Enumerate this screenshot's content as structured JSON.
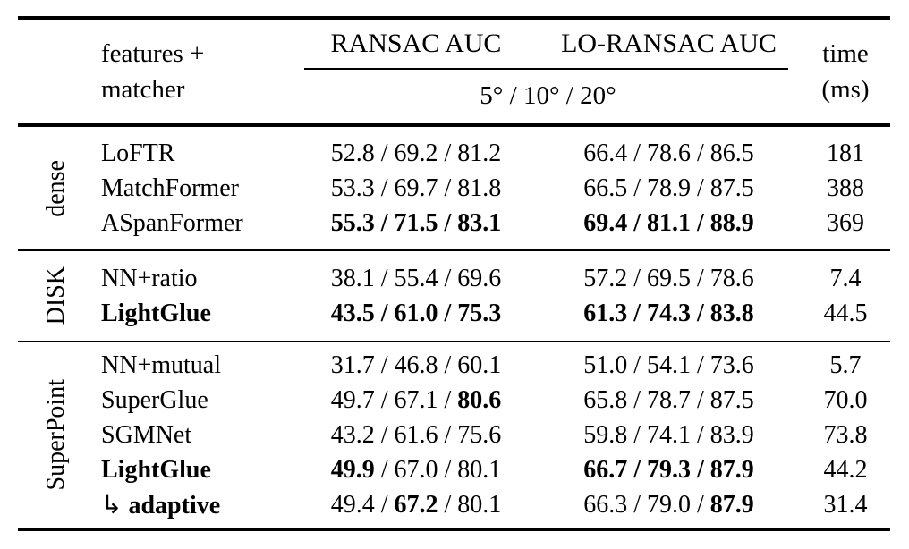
{
  "page": {
    "background": "#ffffff",
    "text_color": "#000000"
  },
  "table": {
    "separator": " / ",
    "header": {
      "features_line1": "features +",
      "features_line2": "matcher",
      "ransac": "RANSAC AUC",
      "loransac": "LO-RANSAC AUC",
      "thresholds": "5° / 10° / 20°",
      "time_line1": "time",
      "time_line2": "(ms)"
    },
    "groups": [
      {
        "label": "dense",
        "rows": [
          {
            "name": "LoFTR",
            "name_bold": false,
            "ransac": {
              "values": [
                "52.8",
                "69.2",
                "81.2"
              ],
              "bold": [
                false,
                false,
                false
              ],
              "sep_bold": false
            },
            "loransac": {
              "values": [
                "66.4",
                "78.6",
                "86.5"
              ],
              "bold": [
                false,
                false,
                false
              ],
              "sep_bold": false
            },
            "time": "181"
          },
          {
            "name": "MatchFormer",
            "name_bold": false,
            "ransac": {
              "values": [
                "53.3",
                "69.7",
                "81.8"
              ],
              "bold": [
                false,
                false,
                false
              ],
              "sep_bold": false
            },
            "loransac": {
              "values": [
                "66.5",
                "78.9",
                "87.5"
              ],
              "bold": [
                false,
                false,
                false
              ],
              "sep_bold": false
            },
            "time": "388"
          },
          {
            "name": "ASpanFormer",
            "name_bold": false,
            "ransac": {
              "values": [
                "55.3",
                "71.5",
                "83.1"
              ],
              "bold": [
                true,
                true,
                true
              ],
              "sep_bold": true
            },
            "loransac": {
              "values": [
                "69.4",
                "81.1",
                "88.9"
              ],
              "bold": [
                true,
                true,
                true
              ],
              "sep_bold": true
            },
            "time": "369"
          }
        ]
      },
      {
        "label": "DISK",
        "rows": [
          {
            "name": "NN+ratio",
            "name_bold": false,
            "ransac": {
              "values": [
                "38.1",
                "55.4",
                "69.6"
              ],
              "bold": [
                false,
                false,
                false
              ],
              "sep_bold": false
            },
            "loransac": {
              "values": [
                "57.2",
                "69.5",
                "78.6"
              ],
              "bold": [
                false,
                false,
                false
              ],
              "sep_bold": false
            },
            "time": "7.4"
          },
          {
            "name": "LightGlue",
            "name_bold": true,
            "ransac": {
              "values": [
                "43.5",
                "61.0",
                "75.3"
              ],
              "bold": [
                true,
                true,
                true
              ],
              "sep_bold": true
            },
            "loransac": {
              "values": [
                "61.3",
                "74.3",
                "83.8"
              ],
              "bold": [
                true,
                true,
                true
              ],
              "sep_bold": true
            },
            "time": "44.5"
          }
        ]
      },
      {
        "label": "SuperPoint",
        "rows": [
          {
            "name": "NN+mutual",
            "name_bold": false,
            "ransac": {
              "values": [
                "31.7",
                "46.8",
                "60.1"
              ],
              "bold": [
                false,
                false,
                false
              ],
              "sep_bold": false
            },
            "loransac": {
              "values": [
                "51.0",
                "54.1",
                "73.6"
              ],
              "bold": [
                false,
                false,
                false
              ],
              "sep_bold": false
            },
            "time": "5.7"
          },
          {
            "name": "SuperGlue",
            "name_bold": false,
            "ransac": {
              "values": [
                "49.7",
                "67.1",
                "80.6"
              ],
              "bold": [
                false,
                false,
                true
              ],
              "sep_bold": false
            },
            "loransac": {
              "values": [
                "65.8",
                "78.7",
                "87.5"
              ],
              "bold": [
                false,
                false,
                false
              ],
              "sep_bold": false
            },
            "time": "70.0"
          },
          {
            "name": "SGMNet",
            "name_bold": false,
            "ransac": {
              "values": [
                "43.2",
                "61.6",
                "75.6"
              ],
              "bold": [
                false,
                false,
                false
              ],
              "sep_bold": false
            },
            "loransac": {
              "values": [
                "59.8",
                "74.1",
                "83.9"
              ],
              "bold": [
                false,
                false,
                false
              ],
              "sep_bold": false
            },
            "time": "73.8"
          },
          {
            "name": "LightGlue",
            "name_bold": true,
            "ransac": {
              "values": [
                "49.9",
                "67.0",
                "80.1"
              ],
              "bold": [
                true,
                false,
                false
              ],
              "sep_bold": false
            },
            "loransac": {
              "values": [
                "66.7",
                "79.3",
                "87.9"
              ],
              "bold": [
                true,
                true,
                true
              ],
              "sep_bold": true
            },
            "time": "44.2"
          },
          {
            "name": "adaptive",
            "name_bold": true,
            "prefix": "↳ ",
            "ransac": {
              "values": [
                "49.4",
                "67.2",
                "80.1"
              ],
              "bold": [
                false,
                true,
                false
              ],
              "sep_bold": false
            },
            "loransac": {
              "values": [
                "66.3",
                "79.0",
                "87.9"
              ],
              "bold": [
                false,
                false,
                true
              ],
              "sep_bold": false
            },
            "time": "31.4"
          }
        ]
      }
    ]
  }
}
